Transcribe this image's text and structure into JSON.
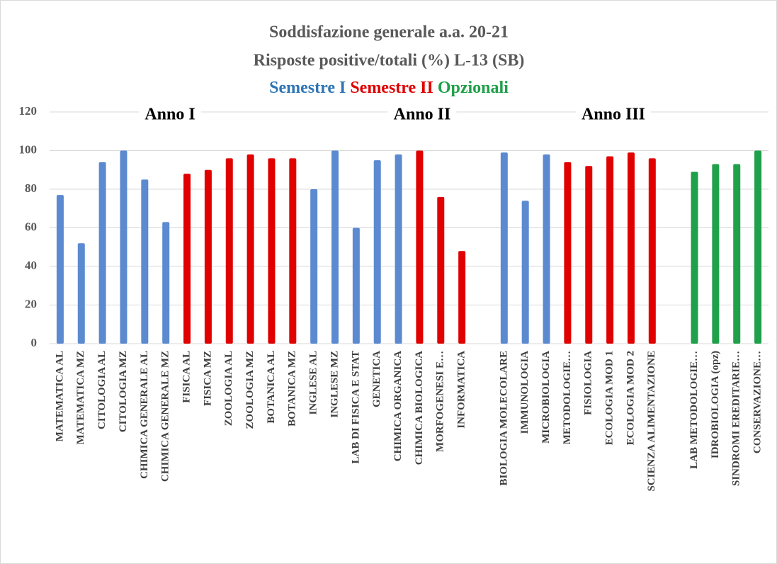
{
  "chart_data": {
    "type": "bar",
    "title": [
      "Soddisfazione generale a.a. 20-21",
      "Risposte positive/totali (%) L-13 (SB)"
    ],
    "subtitle": [
      {
        "text": "Semestre I",
        "color": "#2e75b6"
      },
      {
        "text": "Semestre II",
        "color": "#e00000"
      },
      {
        "text": "Opzionali",
        "color": "#1fa04a"
      }
    ],
    "annotations": [
      "Anno I",
      "Anno II",
      "Anno III"
    ],
    "categories": [
      "MATEMATICA AL",
      "MATEMATICA MZ",
      "CITOLOGIA AL",
      "CITOLOGIA MZ",
      "CHIMICA GENERALE AL",
      "CHIMICA GENERALE MZ",
      "FISICA AL",
      "FISICA MZ",
      "ZOOLOGIA AL",
      "ZOOLOGIA MZ",
      "BOTANICA AL",
      "BOTANICA MZ",
      "INGLESE AL",
      "INGLESE MZ",
      "LAB DI FISICA E STAT",
      "GENETICA",
      "CHIMICA ORGANICA",
      "CHIMICA BIOLOGICA",
      "MORFOGENESI E…",
      "INFORMATICA",
      null,
      "BIOLOGIA MOLECOLARE",
      "IMMUNOLOGIA",
      "MICROBIOLOGIA",
      "METODOLOGIE…",
      "FISIOLOGIA",
      "ECOLOGIA MOD 1",
      "ECOLOGIA MOD 2",
      "SCIENZA ALIMENTAZIONE",
      null,
      "LAB METODOLOGIE…",
      "IDROBIOLOGIA  (opz)",
      "SINDROMI EREDITARIE…",
      "CONSERVAZIONE…"
    ],
    "values": [
      77,
      52,
      94,
      100,
      85,
      63,
      88,
      90,
      96,
      98,
      96,
      96,
      80,
      100,
      60,
      95,
      98,
      100,
      76,
      48,
      null,
      99,
      74,
      98,
      94,
      92,
      97,
      99,
      96,
      null,
      89,
      93,
      93,
      100
    ],
    "colors": [
      "#5b8ad0",
      "#5b8ad0",
      "#5b8ad0",
      "#5b8ad0",
      "#5b8ad0",
      "#5b8ad0",
      "#e00000",
      "#e00000",
      "#e00000",
      "#e00000",
      "#e00000",
      "#e00000",
      "#5b8ad0",
      "#5b8ad0",
      "#5b8ad0",
      "#5b8ad0",
      "#5b8ad0",
      "#e00000",
      "#e00000",
      "#e00000",
      null,
      "#5b8ad0",
      "#5b8ad0",
      "#5b8ad0",
      "#e00000",
      "#e00000",
      "#e00000",
      "#e00000",
      "#e00000",
      null,
      "#1fa04a",
      "#1fa04a",
      "#1fa04a",
      "#1fa04a"
    ],
    "ylim": [
      0,
      120
    ],
    "yticks": [
      0,
      20,
      40,
      60,
      80,
      100,
      120
    ],
    "grid": true
  }
}
